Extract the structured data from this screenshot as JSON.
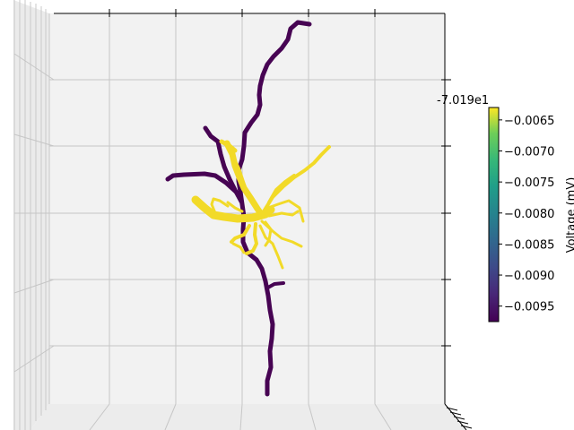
{
  "chart_data": {
    "type": "3d-line",
    "offset_text": "-7.019e1",
    "colorbar": {
      "label": "Voltage (mV)",
      "colormap": "viridis",
      "range": [
        -0.00975,
        -0.0063
      ],
      "ticks": [
        "-0.0065",
        "-0.0070",
        "-0.0075",
        "-0.0080",
        "-0.0085",
        "-0.0090",
        "-0.0095"
      ],
      "tick_values": [
        -0.0065,
        -0.007,
        -0.0075,
        -0.008,
        -0.0085,
        -0.009,
        -0.0095
      ]
    },
    "grid": true,
    "pane_color": "#f2f2f2",
    "line_colors": {
      "low": "#440154",
      "high": "#fde725"
    },
    "series": [
      {
        "voltage": -0.0097,
        "width": 5,
        "points": [
          [
            345,
            27
          ],
          [
            332,
            25
          ],
          [
            324,
            32
          ],
          [
            321,
            44
          ],
          [
            314,
            54
          ],
          [
            305,
            63
          ],
          [
            298,
            72
          ],
          [
            293,
            84
          ],
          [
            290,
            96
          ],
          [
            289,
            106
          ],
          [
            290,
            117
          ],
          [
            287,
            128
          ],
          [
            280,
            137
          ],
          [
            273,
            148
          ],
          [
            272,
            163
          ],
          [
            270,
            178
          ],
          [
            266,
            190
          ],
          [
            266,
            202
          ],
          [
            268,
            214
          ],
          [
            270,
            228
          ],
          [
            272,
            242
          ],
          [
            271,
            256
          ],
          [
            271,
            270
          ],
          [
            276,
            282
          ],
          [
            286,
            290
          ],
          [
            292,
            300
          ],
          [
            296,
            314
          ],
          [
            299,
            330
          ],
          [
            301,
            346
          ],
          [
            304,
            362
          ],
          [
            303,
            378
          ],
          [
            301,
            392
          ],
          [
            302,
            410
          ],
          [
            298,
            425
          ],
          [
            298,
            440
          ]
        ]
      },
      {
        "voltage": -0.0097,
        "width": 5,
        "points": [
          [
            229,
            143
          ],
          [
            235,
            152
          ],
          [
            243,
            158
          ],
          [
            246,
            172
          ],
          [
            250,
            186
          ],
          [
            256,
            200
          ],
          [
            262,
            212
          ],
          [
            269,
            225
          ]
        ]
      },
      {
        "voltage": -0.0097,
        "width": 5,
        "points": [
          [
            187,
            200
          ],
          [
            193,
            196
          ],
          [
            205,
            195
          ],
          [
            228,
            194
          ],
          [
            240,
            196
          ],
          [
            252,
            204
          ],
          [
            263,
            214
          ]
        ]
      },
      {
        "voltage": -0.0097,
        "width": 4,
        "points": [
          [
            297,
            322
          ],
          [
            306,
            317
          ],
          [
            316,
            316
          ]
        ]
      },
      {
        "voltage": -0.0065,
        "width": 9,
        "points": [
          [
            218,
            223
          ],
          [
            228,
            232
          ],
          [
            238,
            240
          ],
          [
            250,
            242
          ],
          [
            265,
            244
          ],
          [
            282,
            243
          ],
          [
            296,
            239
          ],
          [
            302,
            234
          ]
        ]
      },
      {
        "voltage": -0.0065,
        "width": 7,
        "points": [
          [
            253,
            160
          ],
          [
            259,
            172
          ],
          [
            262,
            185
          ],
          [
            267,
            198
          ],
          [
            272,
            210
          ],
          [
            280,
            222
          ],
          [
            287,
            233
          ],
          [
            292,
            240
          ]
        ]
      },
      {
        "voltage": -0.0065,
        "width": 5,
        "points": [
          [
            247,
            158
          ],
          [
            256,
            163
          ],
          [
            262,
            168
          ]
        ]
      },
      {
        "voltage": -0.0065,
        "width": 4,
        "points": [
          [
            294,
            236
          ],
          [
            304,
            220
          ],
          [
            316,
            208
          ],
          [
            328,
            198
          ],
          [
            340,
            190
          ],
          [
            350,
            182
          ],
          [
            358,
            173
          ],
          [
            367,
            164
          ]
        ]
      },
      {
        "voltage": -0.0065,
        "width": 4,
        "points": [
          [
            300,
            226
          ],
          [
            308,
            212
          ],
          [
            318,
            203
          ],
          [
            328,
            196
          ]
        ]
      },
      {
        "voltage": -0.0065,
        "width": 3,
        "points": [
          [
            296,
            233
          ],
          [
            310,
            228
          ],
          [
            322,
            224
          ],
          [
            334,
            232
          ],
          [
            338,
            247
          ]
        ]
      },
      {
        "voltage": -0.0065,
        "width": 3,
        "points": [
          [
            300,
            241
          ],
          [
            314,
            238
          ],
          [
            326,
            240
          ],
          [
            332,
            236
          ]
        ]
      },
      {
        "voltage": -0.0065,
        "width": 3,
        "points": [
          [
            292,
            247
          ],
          [
            304,
            258
          ],
          [
            314,
            266
          ],
          [
            326,
            270
          ],
          [
            336,
            275
          ]
        ]
      },
      {
        "voltage": -0.0065,
        "width": 3,
        "points": [
          [
            290,
            252
          ],
          [
            296,
            265
          ],
          [
            304,
            272
          ],
          [
            310,
            286
          ],
          [
            315,
            299
          ]
        ]
      },
      {
        "voltage": -0.0065,
        "width": 4,
        "points": [
          [
            285,
            250
          ],
          [
            284,
            262
          ],
          [
            286,
            272
          ],
          [
            282,
            280
          ],
          [
            275,
            283
          ]
        ]
      },
      {
        "voltage": -0.0065,
        "width": 4,
        "points": [
          [
            278,
            252
          ],
          [
            272,
            262
          ],
          [
            262,
            266
          ],
          [
            258,
            270
          ]
        ]
      },
      {
        "voltage": -0.0065,
        "width": 4,
        "points": [
          [
            282,
            225
          ],
          [
            274,
            212
          ],
          [
            270,
            200
          ],
          [
            266,
            188
          ],
          [
            262,
            180
          ]
        ]
      },
      {
        "voltage": -0.0065,
        "width": 3,
        "points": [
          [
            296,
            248
          ],
          [
            302,
            256
          ],
          [
            300,
            268
          ],
          [
            296,
            274
          ]
        ]
      },
      {
        "voltage": -0.0065,
        "width": 3,
        "points": [
          [
            240,
            238
          ],
          [
            236,
            228
          ],
          [
            238,
            222
          ],
          [
            245,
            224
          ],
          [
            254,
            230
          ]
        ]
      },
      {
        "voltage": -0.0065,
        "width": 3,
        "points": [
          [
            254,
            226
          ],
          [
            262,
            232
          ],
          [
            270,
            236
          ]
        ]
      },
      {
        "voltage": -0.0065,
        "width": 3,
        "points": [
          [
            260,
            272
          ],
          [
            268,
            276
          ],
          [
            272,
            282
          ]
        ]
      }
    ]
  }
}
